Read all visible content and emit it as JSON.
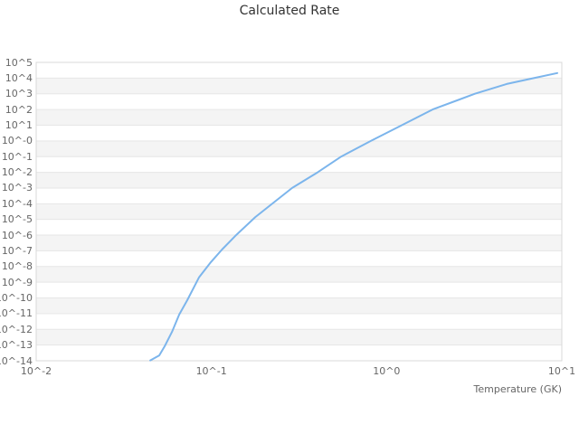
{
  "chart": {
    "title": "Calculated Rate",
    "x_axis_title": "Temperature (GK)"
  },
  "colors": {
    "background": "#ffffff",
    "title_text": "#333333",
    "tick_text": "#666666",
    "grid_line": "#e6e6e6",
    "plot_border": "#d8d8d8",
    "band_fill": "#f4f4f4",
    "series_line": "#7cb5ec"
  },
  "chart_data": {
    "type": "line",
    "title": "Calculated Rate",
    "xlabel": "Temperature (GK)",
    "ylabel": "",
    "x_scale": "log",
    "y_scale": "log",
    "xlim": [
      0.01,
      10
    ],
    "ylim": [
      1e-14,
      100000.0
    ],
    "x_tick_labels": [
      "10^-2",
      "10^-1",
      "10^0",
      "10^1"
    ],
    "y_tick_labels": [
      "10^5",
      "10^4",
      "10^3",
      "10^2",
      "10^1",
      "10^-0",
      "10^-1",
      "10^-2",
      "10^-3",
      "10^-4",
      "10^-5",
      "10^-6",
      "10^-7",
      "10^-8",
      "10^-9",
      "10^-10",
      "10^-11",
      "10^-12",
      "10^-13",
      "10^-14"
    ],
    "grid": true,
    "alternating_bands": true,
    "legend_position": "none",
    "series": [
      {
        "name": "Calculated Rate",
        "color": "#7cb5ec",
        "x": [
          0.0448,
          0.0504,
          0.0541,
          0.0596,
          0.0655,
          0.0728,
          0.0849,
          0.0993,
          0.115,
          0.137,
          0.178,
          0.22,
          0.289,
          0.404,
          0.55,
          0.815,
          1.22,
          1.83,
          3.19,
          4.84,
          6.92,
          9.42
        ],
        "y": [
          1.05e-14,
          2.2e-14,
          8.3e-14,
          6.9e-13,
          8.7e-12,
          7.2e-11,
          2e-09,
          1.9e-08,
          1.2e-07,
          8.9e-07,
          1.4e-05,
          9.1e-05,
          0.001,
          0.01,
          0.1,
          1.0,
          10,
          100,
          1000,
          4200,
          10000,
          21000
        ]
      }
    ]
  }
}
